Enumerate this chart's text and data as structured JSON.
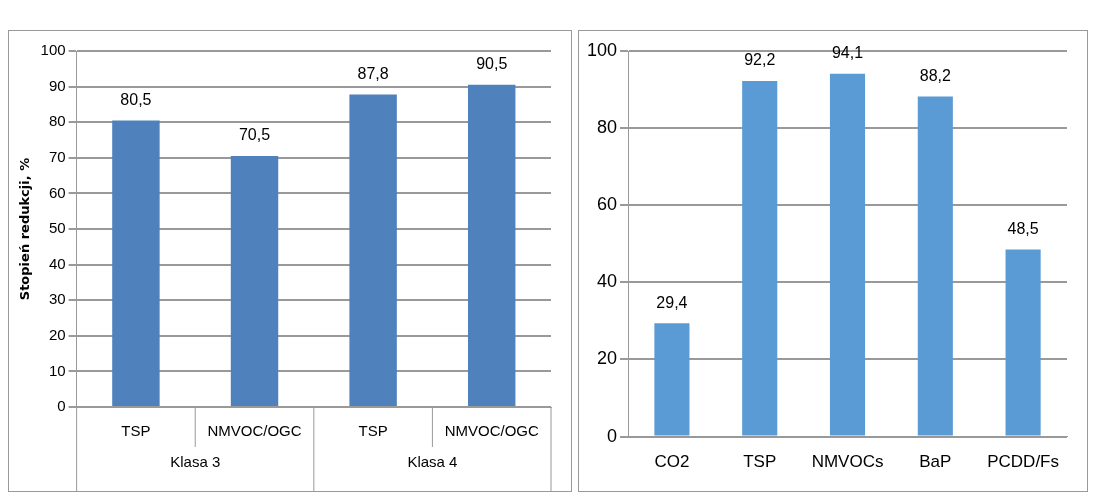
{
  "chart_data": [
    {
      "type": "bar",
      "ylabel": "Stopień redukcji, %",
      "categories": [
        "TSP",
        "NMVOC/OGC",
        "TSP",
        "NMVOC/OGC"
      ],
      "values": [
        80.5,
        70.5,
        87.8,
        90.5
      ],
      "value_labels": [
        "80,5",
        "70,5",
        "87,8",
        "90,5"
      ],
      "color": "#4f81bd",
      "ylim": [
        0,
        100
      ],
      "yticks": [
        0,
        10,
        20,
        30,
        40,
        50,
        60,
        70,
        80,
        90,
        100
      ],
      "grid": "y",
      "annotations": [
        "Klasa 3",
        "Klasa 4"
      ]
    },
    {
      "type": "bar",
      "categories": [
        "CO2",
        "TSP",
        "NMVOCs",
        "BaP",
        "PCDD/Fs"
      ],
      "values": [
        29.4,
        92.2,
        94.1,
        88.2,
        48.5
      ],
      "value_labels": [
        "29,4",
        "92,2",
        "94,1",
        "88,2",
        "48,5"
      ],
      "color": "#5b9bd5",
      "ylim": [
        0,
        100
      ],
      "yticks": [
        0,
        20,
        40,
        60,
        80,
        100
      ],
      "grid": "y"
    }
  ]
}
